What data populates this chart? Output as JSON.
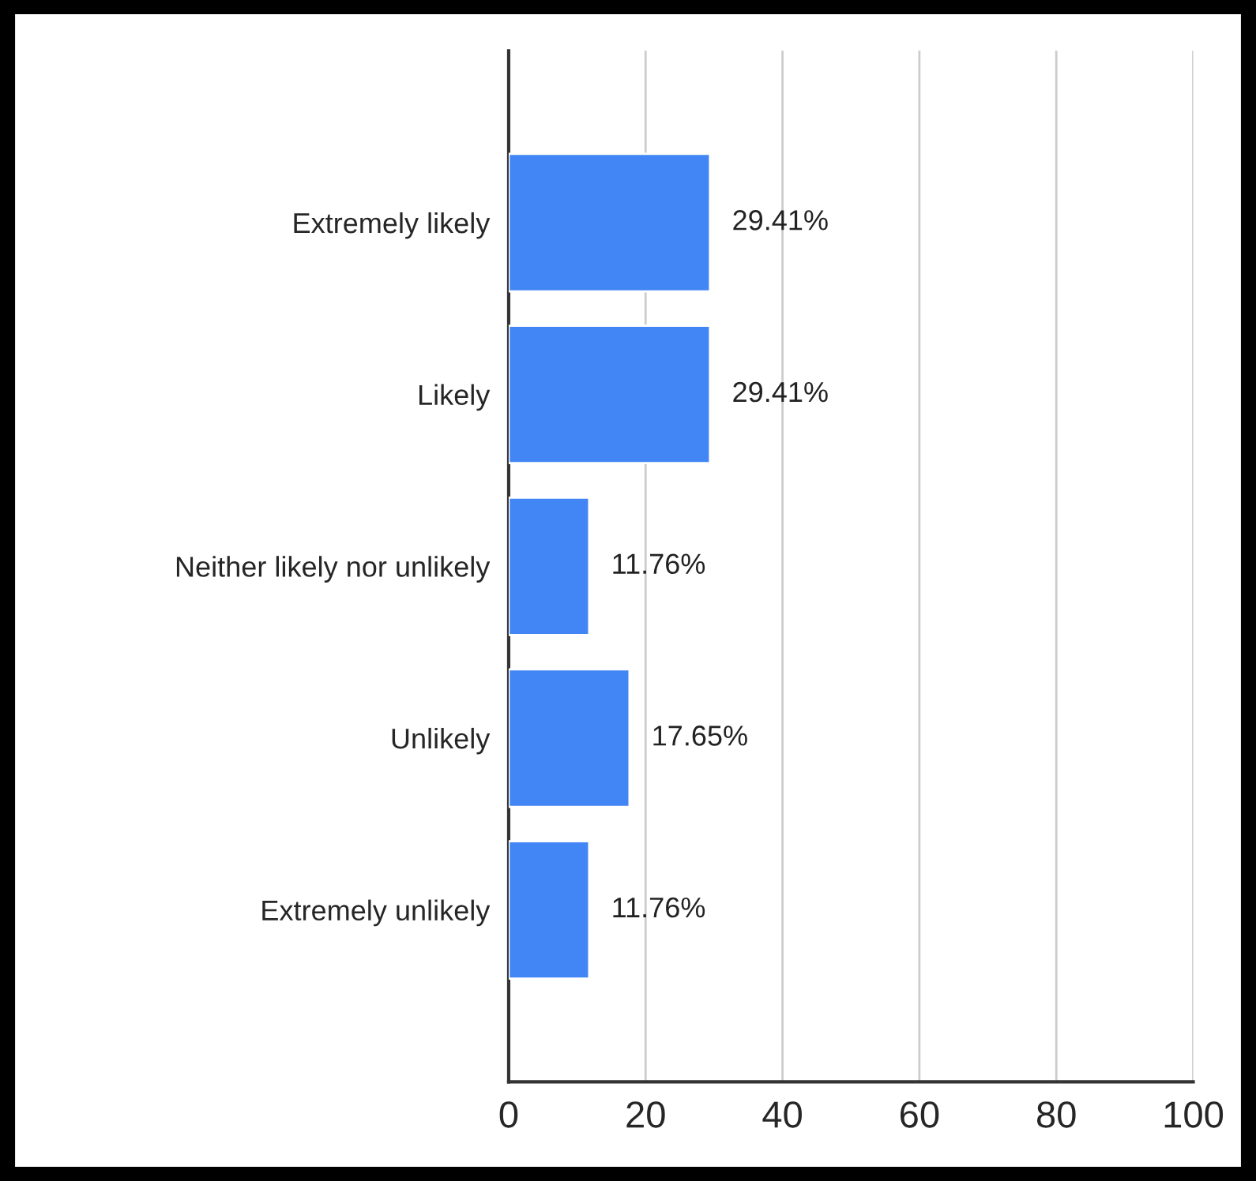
{
  "chart_data": {
    "type": "bar",
    "orientation": "horizontal",
    "categories": [
      "Extremely likely",
      "Likely",
      "Neither likely nor unlikely",
      "Unlikely",
      "Extremely unlikely"
    ],
    "values": [
      29.41,
      29.41,
      11.76,
      17.65,
      11.76
    ],
    "value_labels": [
      "29.41%",
      "29.41%",
      "11.76%",
      "17.65%",
      "11.76%"
    ],
    "color": "#4285f4",
    "xlim": [
      0,
      100
    ],
    "xticks": [
      0,
      20,
      40,
      60,
      80,
      100
    ],
    "grid": "x"
  }
}
